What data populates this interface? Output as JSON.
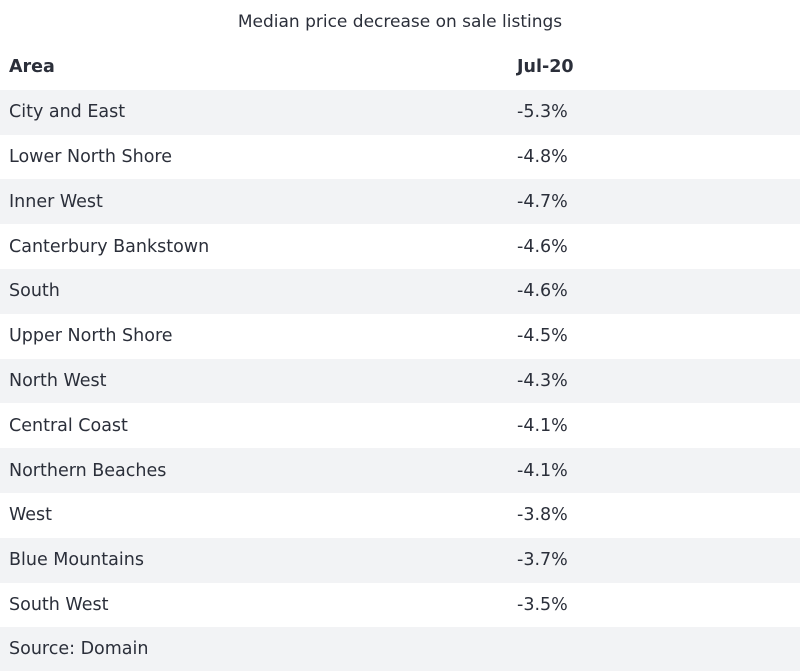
{
  "chart_data": {
    "type": "table",
    "title": "Median price decrease on sale listings",
    "columns": [
      "Area",
      "Jul-20"
    ],
    "rows": [
      {
        "area": "City and East",
        "value": "-5.3%"
      },
      {
        "area": "Lower North Shore",
        "value": "-4.8%"
      },
      {
        "area": "Inner West",
        "value": "-4.7%"
      },
      {
        "area": "Canterbury Bankstown",
        "value": "-4.6%"
      },
      {
        "area": "South",
        "value": "-4.6%"
      },
      {
        "area": "Upper North Shore",
        "value": "-4.5%"
      },
      {
        "area": "North West",
        "value": "-4.3%"
      },
      {
        "area": "Central Coast",
        "value": "-4.1%"
      },
      {
        "area": "Northern Beaches",
        "value": "-4.1%"
      },
      {
        "area": "West",
        "value": "-3.8%"
      },
      {
        "area": "Blue Mountains",
        "value": "-3.7%"
      },
      {
        "area": "South West",
        "value": "-3.5%"
      }
    ],
    "source": "Source: Domain"
  },
  "colors": {
    "text": "#2b2f3a",
    "stripe": "#f2f3f5",
    "background": "#ffffff"
  }
}
